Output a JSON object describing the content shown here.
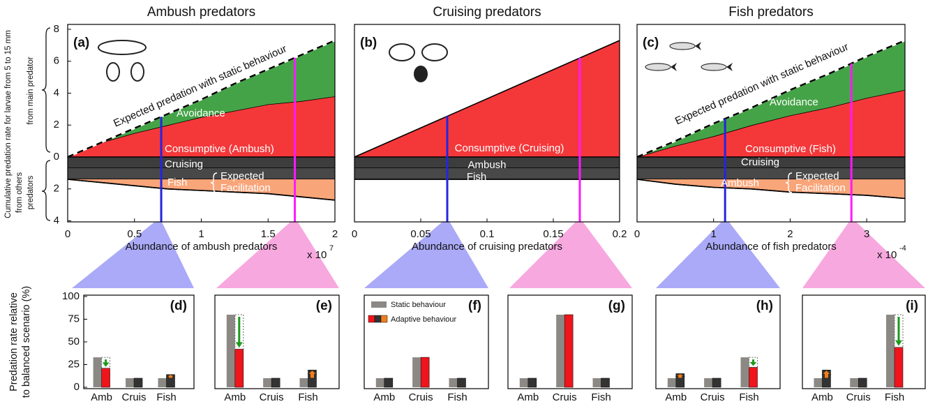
{
  "chart_data": [
    {
      "type": "stacked-area",
      "panel_label": "(a)",
      "title": "Ambush predators",
      "ylabel": "Cumulative predation rate for larvae from 5 to 15 mm",
      "ylabel_upper": "from main predator",
      "ylabel_lower": [
        "from others",
        "predators"
      ],
      "xlabel": "Abundance of ambush predators",
      "x_multiplier": {
        "base": "x 10",
        "exponent": "7"
      },
      "x": [
        0,
        0.25,
        0.5,
        0.75,
        1,
        1.25,
        1.5,
        1.75,
        2
      ],
      "xlim": [
        0,
        2
      ],
      "xticks": [
        0,
        0.5,
        1,
        1.5,
        2
      ],
      "ylim": [
        0,
        8
      ],
      "yticks": [
        0,
        2,
        4,
        6,
        8
      ],
      "y2lim": [
        0,
        4
      ],
      "y2ticks": [
        2,
        4
      ],
      "y2_inverted": true,
      "series": [
        {
          "name": "Consumptive (Ambush)",
          "color": "#f4383a",
          "values": [
            0,
            0.9,
            1.5,
            2.0,
            2.5,
            2.9,
            3.3,
            3.5,
            3.8
          ]
        },
        {
          "name": "Avoidance",
          "color": "#45a347",
          "values": [
            0,
            0,
            0.3,
            0.7,
            1.1,
            1.7,
            2.2,
            2.9,
            3.5
          ]
        },
        {
          "name": "Cruising",
          "color": "#3d3d3d",
          "axis": "y2",
          "values": [
            0.7,
            0.7,
            0.7,
            0.7,
            0.7,
            0.7,
            0.7,
            0.7,
            0.7
          ]
        },
        {
          "name": "Fish",
          "color": "#484848",
          "axis": "y2",
          "values": [
            0.7,
            0.7,
            0.7,
            0.7,
            0.7,
            0.7,
            0.7,
            0.7,
            0.7
          ]
        },
        {
          "name": "Facilitation",
          "color": "#f9a57a",
          "axis": "y2",
          "values": [
            0,
            0.2,
            0.4,
            0.6,
            0.7,
            0.8,
            0.9,
            1.1,
            1.3
          ]
        }
      ],
      "annotations": [
        "Expected predation with static behaviour",
        "Expected"
      ],
      "markers": [
        {
          "x": 0.7,
          "color": "#2424e0"
        },
        {
          "x": 1.7,
          "color": "#ff19ff"
        }
      ]
    },
    {
      "type": "stacked-area",
      "panel_label": "(b)",
      "title": "Cruising predators",
      "xlabel": "Abundance of cruising predators",
      "x": [
        0,
        0.2
      ],
      "xlim": [
        0,
        0.2
      ],
      "xticks": [
        0,
        0.05,
        0.1,
        0.15,
        0.2
      ],
      "ylim": [
        0,
        8
      ],
      "y2lim": [
        0,
        4
      ],
      "y2_inverted": true,
      "series": [
        {
          "name": "Consumptive (Cruising)",
          "color": "#f4383a",
          "values": [
            0,
            7.3
          ]
        },
        {
          "name": "Ambush",
          "color": "#3d3d3d",
          "axis": "y2",
          "values": [
            0.7,
            0.7
          ]
        },
        {
          "name": "Fish",
          "color": "#484848",
          "axis": "y2",
          "values": [
            0.7,
            0.7
          ]
        }
      ],
      "markers": [
        {
          "x": 0.07,
          "color": "#2424e0"
        },
        {
          "x": 0.17,
          "color": "#ff19ff"
        }
      ]
    },
    {
      "type": "stacked-area",
      "panel_label": "(c)",
      "title": "Fish predators",
      "xlabel": "Abundance of fish predators",
      "x_multiplier": {
        "base": "x 10",
        "exponent": "-4"
      },
      "x": [
        0,
        0.5,
        1,
        1.5,
        2,
        2.5,
        3,
        3.5
      ],
      "xlim": [
        0,
        3.5
      ],
      "xticks": [
        0,
        1,
        2,
        3
      ],
      "ylim": [
        0,
        8
      ],
      "y2lim": [
        0,
        4
      ],
      "y2_inverted": true,
      "series": [
        {
          "name": "Consumptive (Fish)",
          "color": "#f4383a",
          "values": [
            0,
            0.7,
            1.3,
            2.0,
            2.6,
            3.1,
            3.7,
            4.2
          ]
        },
        {
          "name": "Avoidance",
          "color": "#45a347",
          "values": [
            0,
            0.3,
            0.8,
            1.1,
            1.6,
            2.1,
            2.6,
            3.1
          ]
        },
        {
          "name": "Cruising",
          "color": "#3d3d3d",
          "axis": "y2",
          "values": [
            0.7,
            0.7,
            0.7,
            0.7,
            0.7,
            0.7,
            0.7,
            0.7
          ]
        },
        {
          "name": "Ambush",
          "color": "#484848",
          "axis": "y2",
          "values": [
            0.7,
            0.7,
            0.7,
            0.7,
            0.7,
            0.7,
            0.7,
            0.7
          ]
        },
        {
          "name": "Facilitation",
          "color": "#f9a57a",
          "axis": "y2",
          "values": [
            0,
            0.3,
            0.5,
            0.6,
            0.8,
            0.9,
            1.0,
            1.2
          ]
        }
      ],
      "annotations": [
        "Expected predation with static behaviour",
        "Expected"
      ],
      "markers": [
        {
          "x": 1.15,
          "color": "#2424e0"
        },
        {
          "x": 2.8,
          "color": "#ff19ff"
        }
      ]
    },
    {
      "type": "grouped-bar",
      "panel_label": "(d)",
      "ylabel": [
        "Predation rate relative",
        "to balanced scenario (%)"
      ],
      "categories": [
        "Amb",
        "Cruis",
        "Fish"
      ],
      "ylim": [
        0,
        100
      ],
      "yticks": [
        0,
        25,
        50,
        75,
        100
      ],
      "series": [
        {
          "color": "#8c8985",
          "values": [
            33,
            10,
            10
          ]
        },
        {
          "colors": [
            "#f0141b",
            "#333333",
            "#333333"
          ],
          "values": [
            21,
            10,
            14
          ]
        }
      ]
    },
    {
      "type": "grouped-bar",
      "panel_label": "(e)",
      "categories": [
        "Amb",
        "Cruis",
        "Fish"
      ],
      "ylim": [
        0,
        100
      ],
      "series": [
        {
          "color": "#8c8985",
          "values": [
            80,
            10,
            10
          ]
        },
        {
          "colors": [
            "#f0141b",
            "#333333",
            "#333333"
          ],
          "values": [
            42,
            10,
            19
          ]
        }
      ]
    },
    {
      "type": "grouped-bar",
      "panel_label": "(f)",
      "categories": [
        "Amb",
        "Cruis",
        "Fish"
      ],
      "ylim": [
        0,
        100
      ],
      "series": [
        {
          "name": "Static behaviour",
          "color": "#8c8985",
          "values": [
            10,
            33,
            10
          ]
        },
        {
          "name": "Adaptive behaviour",
          "colors": [
            "#333333",
            "#f0141b",
            "#333333"
          ],
          "legend_colors": [
            "#f0141b",
            "#333333",
            "#f07d1c"
          ],
          "values": [
            10,
            33,
            10
          ]
        }
      ]
    },
    {
      "type": "grouped-bar",
      "panel_label": "(g)",
      "categories": [
        "Amb",
        "Cruis",
        "Fish"
      ],
      "ylim": [
        0,
        100
      ],
      "series": [
        {
          "color": "#8c8985",
          "values": [
            10,
            80,
            10
          ]
        },
        {
          "colors": [
            "#333333",
            "#f0141b",
            "#333333"
          ],
          "values": [
            10,
            80,
            10
          ]
        }
      ]
    },
    {
      "type": "grouped-bar",
      "panel_label": "(h)",
      "categories": [
        "Amb",
        "Cruis",
        "Fish"
      ],
      "ylim": [
        0,
        100
      ],
      "series": [
        {
          "color": "#8c8985",
          "values": [
            10,
            10,
            33
          ]
        },
        {
          "colors": [
            "#333333",
            "#333333",
            "#f0141b"
          ],
          "values": [
            15,
            10,
            22
          ]
        }
      ]
    },
    {
      "type": "grouped-bar",
      "panel_label": "(i)",
      "categories": [
        "Amb",
        "Cruis",
        "Fish"
      ],
      "ylim": [
        0,
        100
      ],
      "series": [
        {
          "color": "#8c8985",
          "values": [
            10,
            10,
            80
          ]
        },
        {
          "colors": [
            "#333333",
            "#333333",
            "#f0141b"
          ],
          "values": [
            19,
            10,
            44
          ]
        }
      ]
    }
  ]
}
